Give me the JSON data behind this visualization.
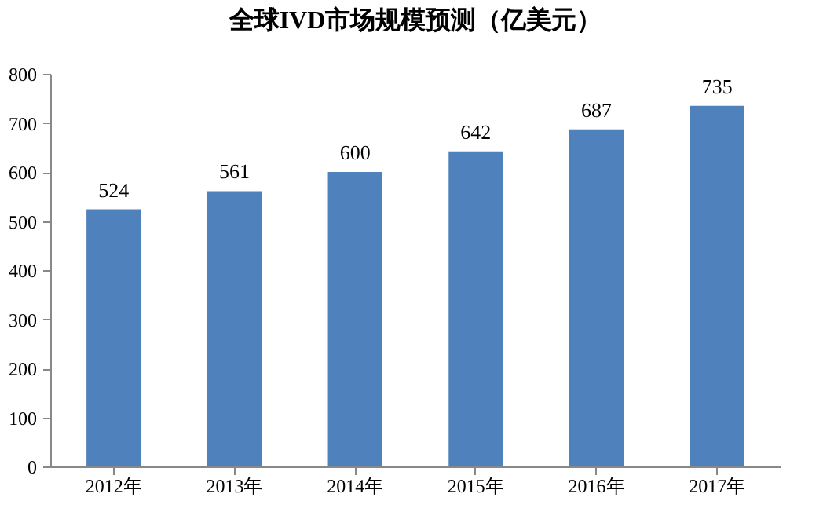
{
  "chart_data": {
    "type": "bar",
    "title": "全球IVD市场规模预测（亿美元）",
    "categories": [
      "2012年",
      "2013年",
      "2014年",
      "2015年",
      "2016年",
      "2017年"
    ],
    "values": [
      524,
      561,
      600,
      642,
      687,
      735
    ],
    "color": "#4f81bd",
    "ylim": [
      0,
      800
    ],
    "yticks": [
      0,
      100,
      200,
      300,
      400,
      500,
      600,
      700,
      800
    ],
    "grid": false,
    "data_labels": true
  }
}
